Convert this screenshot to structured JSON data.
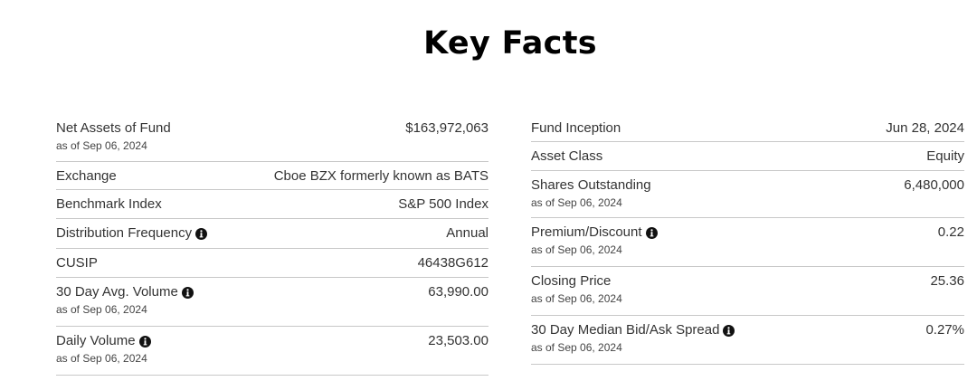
{
  "title": "Key Facts",
  "left_column": [
    {
      "label": "Net Assets of Fund",
      "asof": "as of Sep 06, 2024",
      "value": "$163,972,063",
      "info": false
    },
    {
      "label": "Exchange",
      "asof": "",
      "value": "Cboe BZX formerly known as BATS",
      "info": false
    },
    {
      "label": "Benchmark Index",
      "asof": "",
      "value": "S&P 500 Index",
      "info": false
    },
    {
      "label": "Distribution Frequency",
      "asof": "",
      "value": "Annual",
      "info": true
    },
    {
      "label": "CUSIP",
      "asof": "",
      "value": "46438G612",
      "info": false
    },
    {
      "label": "30 Day Avg. Volume",
      "asof": "as of Sep 06, 2024",
      "value": "63,990.00",
      "info": true
    },
    {
      "label": "Daily Volume",
      "asof": "as of Sep 06, 2024",
      "value": "23,503.00",
      "info": true
    }
  ],
  "right_column": [
    {
      "label": "Fund Inception",
      "asof": "",
      "value": "Jun 28, 2024",
      "info": false
    },
    {
      "label": "Asset Class",
      "asof": "",
      "value": "Equity",
      "info": false
    },
    {
      "label": "Shares Outstanding",
      "asof": "as of Sep 06, 2024",
      "value": "6,480,000",
      "info": false
    },
    {
      "label": "Premium/Discount",
      "asof": "as of Sep 06, 2024",
      "value": "0.22",
      "info": true
    },
    {
      "label": "Closing Price",
      "asof": "as of Sep 06, 2024",
      "value": "25.36",
      "info": false
    },
    {
      "label": "30 Day Median Bid/Ask Spread",
      "asof": "as of Sep 06, 2024",
      "value": "0.27%",
      "info": true
    }
  ],
  "icons": {
    "info": "info-circle-icon"
  },
  "colors": {
    "text": "#333333",
    "divider": "#c8c8c8",
    "title": "#000000"
  }
}
